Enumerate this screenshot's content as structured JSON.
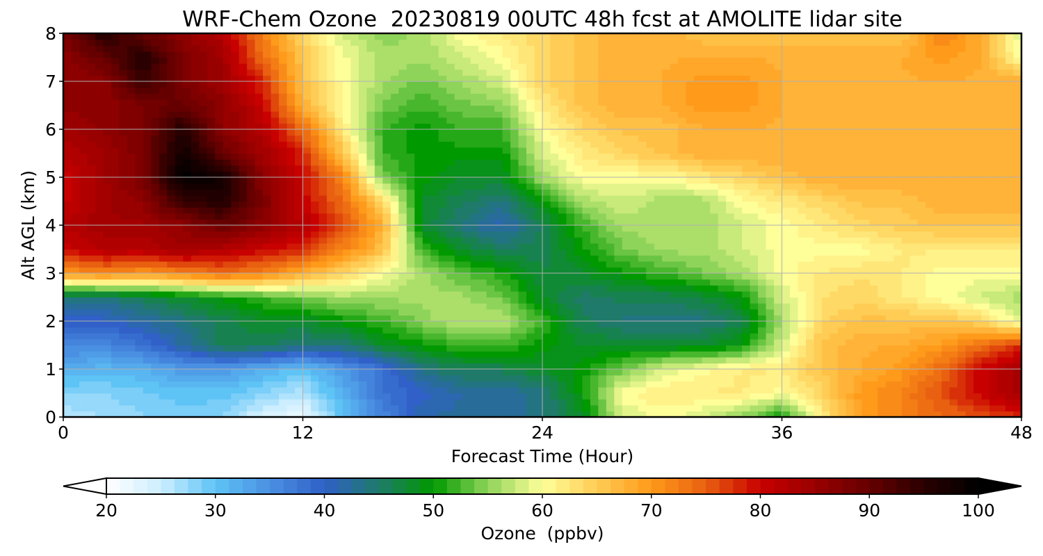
{
  "chart_data": {
    "type": "heatmap",
    "title": "WRF-Chem Ozone  20230819 00UTC 48h fcst at AMOLITE lidar site",
    "xlabel": "Forecast Time (Hour)",
    "ylabel": "Alt AGL (km)",
    "xlim": [
      0,
      48
    ],
    "ylim": [
      0,
      8
    ],
    "xticks": [
      "0",
      "12",
      "24",
      "36",
      "48"
    ],
    "yticks": [
      "0",
      "1",
      "2",
      "3",
      "4",
      "5",
      "6",
      "7",
      "8"
    ],
    "grid": true,
    "z_label": "Ozone (ppbv)",
    "x": [
      0,
      2,
      4,
      6,
      8,
      10,
      12,
      14,
      16,
      18,
      20,
      22,
      24,
      26,
      28,
      30,
      32,
      34,
      36,
      38,
      40,
      42,
      44,
      46,
      48
    ],
    "y": [
      0,
      0.5,
      1,
      1.5,
      2,
      2.5,
      3,
      3.5,
      4,
      4.5,
      5,
      5.5,
      6,
      6.5,
      7,
      7.5,
      8
    ],
    "z": [
      [
        26,
        27,
        28,
        29,
        28,
        24,
        22,
        30,
        36,
        42,
        42,
        42,
        44,
        48,
        58,
        60,
        58,
        55,
        50,
        62,
        70,
        72,
        74,
        76,
        78
      ],
      [
        28,
        28,
        29,
        30,
        30,
        28,
        26,
        32,
        38,
        40,
        42,
        42,
        44,
        50,
        60,
        62,
        62,
        62,
        60,
        64,
        70,
        72,
        76,
        80,
        84
      ],
      [
        32,
        31,
        32,
        34,
        34,
        32,
        30,
        34,
        38,
        44,
        46,
        46,
        48,
        50,
        54,
        58,
        60,
        62,
        62,
        66,
        68,
        70,
        74,
        80,
        84
      ],
      [
        36,
        36,
        38,
        42,
        46,
        46,
        44,
        44,
        48,
        50,
        52,
        52,
        50,
        48,
        48,
        48,
        48,
        50,
        58,
        66,
        68,
        68,
        70,
        74,
        78
      ],
      [
        40,
        40,
        42,
        44,
        46,
        48,
        48,
        50,
        52,
        55,
        57,
        57,
        52,
        46,
        44,
        44,
        44,
        46,
        56,
        64,
        66,
        66,
        66,
        64,
        58
      ],
      [
        44,
        44,
        46,
        48,
        50,
        52,
        54,
        56,
        56,
        56,
        56,
        54,
        48,
        45,
        46,
        46,
        47,
        50,
        58,
        63,
        64,
        62,
        60,
        58,
        56
      ],
      [
        70,
        72,
        70,
        72,
        74,
        72,
        68,
        64,
        60,
        56,
        53,
        51,
        47,
        48,
        50,
        52,
        54,
        56,
        60,
        62,
        63,
        62,
        60,
        60,
        60
      ],
      [
        80,
        82,
        82,
        84,
        82,
        80,
        78,
        72,
        66,
        52,
        48,
        46,
        46,
        50,
        54,
        56,
        56,
        58,
        60,
        60,
        60,
        62,
        62,
        62,
        62
      ],
      [
        82,
        84,
        84,
        86,
        90,
        86,
        82,
        76,
        68,
        48,
        44,
        41,
        46,
        52,
        56,
        56,
        56,
        58,
        60,
        62,
        64,
        65,
        66,
        66,
        66
      ],
      [
        80,
        84,
        86,
        94,
        96,
        88,
        80,
        74,
        64,
        48,
        46,
        44,
        50,
        56,
        58,
        56,
        56,
        60,
        62,
        64,
        66,
        66,
        68,
        68,
        68
      ],
      [
        80,
        84,
        88,
        100,
        98,
        86,
        80,
        72,
        54,
        50,
        48,
        48,
        56,
        60,
        60,
        60,
        62,
        64,
        66,
        68,
        68,
        68,
        68,
        68,
        68
      ],
      [
        82,
        84,
        88,
        98,
        90,
        84,
        78,
        66,
        52,
        50,
        50,
        50,
        58,
        62,
        64,
        66,
        68,
        68,
        68,
        68,
        68,
        68,
        68,
        68,
        68
      ],
      [
        84,
        86,
        88,
        96,
        86,
        82,
        74,
        62,
        52,
        50,
        52,
        52,
        60,
        64,
        66,
        66,
        68,
        68,
        68,
        68,
        68,
        68,
        68,
        68,
        68
      ],
      [
        86,
        86,
        88,
        90,
        86,
        80,
        68,
        60,
        54,
        52,
        54,
        55,
        62,
        66,
        68,
        68,
        70,
        70,
        68,
        68,
        68,
        68,
        68,
        68,
        68
      ],
      [
        86,
        86,
        94,
        88,
        84,
        78,
        66,
        60,
        56,
        54,
        56,
        58,
        64,
        66,
        68,
        68,
        70,
        70,
        68,
        68,
        68,
        68,
        68,
        68,
        68
      ],
      [
        86,
        90,
        96,
        88,
        84,
        74,
        66,
        60,
        56,
        56,
        58,
        60,
        64,
        66,
        68,
        68,
        68,
        68,
        68,
        68,
        68,
        68,
        70,
        68,
        60
      ],
      [
        88,
        96,
        90,
        86,
        82,
        72,
        64,
        58,
        55,
        56,
        60,
        62,
        64,
        66,
        68,
        68,
        66,
        66,
        66,
        66,
        66,
        66,
        72,
        68,
        58
      ]
    ],
    "colorbar": {
      "min": 20,
      "max": 100,
      "ticks": [
        "20",
        "30",
        "40",
        "50",
        "60",
        "70",
        "80",
        "90",
        "100"
      ],
      "extend": "both",
      "label": "Ozone  (ppbv)"
    },
    "colormap": [
      [
        20,
        "#ffffff"
      ],
      [
        25,
        "#cdeeff"
      ],
      [
        30,
        "#5ec3f5"
      ],
      [
        35,
        "#4a90e2"
      ],
      [
        40,
        "#3060c8"
      ],
      [
        45,
        "#1f7a6a"
      ],
      [
        50,
        "#009900"
      ],
      [
        55,
        "#8fd45a"
      ],
      [
        60,
        "#ffff9a"
      ],
      [
        65,
        "#ffcc55"
      ],
      [
        70,
        "#ff9a1a"
      ],
      [
        75,
        "#e86010"
      ],
      [
        80,
        "#c80000"
      ],
      [
        85,
        "#990000"
      ],
      [
        90,
        "#660000"
      ],
      [
        95,
        "#2a0000"
      ],
      [
        100,
        "#000000"
      ]
    ]
  }
}
